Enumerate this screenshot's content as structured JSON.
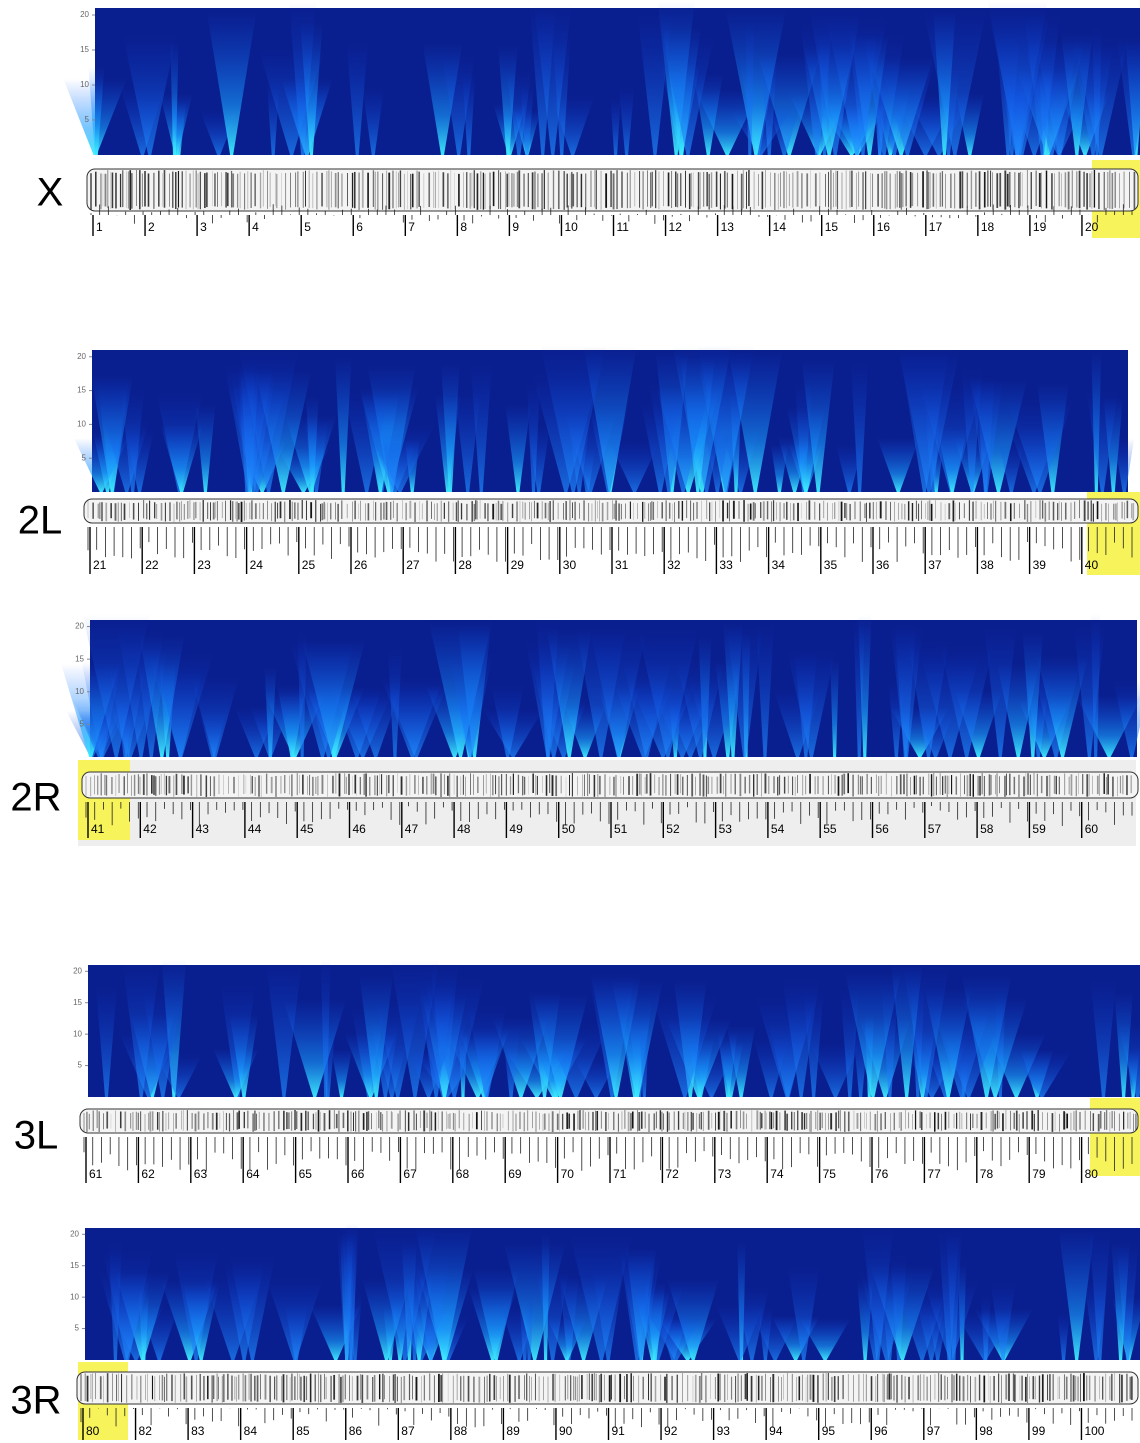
{
  "panels": [
    {
      "label": "X",
      "ylim": [
        0,
        21
      ],
      "yticks": [
        5,
        10,
        15,
        20
      ],
      "divisions": [
        1,
        2,
        3,
        4,
        5,
        6,
        7,
        8,
        9,
        10,
        11,
        12,
        13,
        14,
        15,
        16,
        17,
        18,
        19,
        20
      ]
    },
    {
      "label": "2L",
      "ylim": [
        0,
        21
      ],
      "yticks": [
        5,
        10,
        15,
        20
      ],
      "divisions": [
        21,
        22,
        23,
        24,
        25,
        26,
        27,
        28,
        29,
        30,
        31,
        32,
        33,
        34,
        35,
        36,
        37,
        38,
        39,
        40
      ]
    },
    {
      "label": "2R",
      "ylim": [
        0,
        21
      ],
      "yticks": [
        5,
        10,
        15,
        20
      ],
      "divisions": [
        41,
        42,
        43,
        44,
        45,
        46,
        47,
        48,
        49,
        50,
        51,
        52,
        53,
        54,
        55,
        56,
        57,
        58,
        59,
        60
      ]
    },
    {
      "label": "3L",
      "ylim": [
        0,
        21
      ],
      "yticks": [
        5,
        10,
        15,
        20
      ],
      "divisions": [
        61,
        62,
        63,
        64,
        65,
        66,
        67,
        68,
        69,
        70,
        71,
        72,
        73,
        74,
        75,
        76,
        77,
        78,
        79,
        80
      ]
    },
    {
      "label": "3R",
      "ylim": [
        0,
        21
      ],
      "yticks": [
        5,
        10,
        15,
        20
      ],
      "divisions": [
        80,
        82,
        83,
        84,
        85,
        86,
        87,
        88,
        89,
        90,
        91,
        92,
        93,
        94,
        95,
        96,
        97,
        98,
        99,
        100
      ]
    }
  ]
}
